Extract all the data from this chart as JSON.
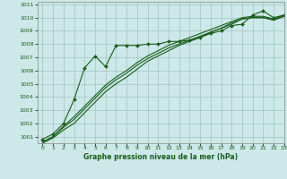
{
  "background_color": "#cce8e8",
  "grid_color": "#99bbbb",
  "line_color": "#1a5c1a",
  "marker_color": "#1a5c1a",
  "xlabel": "Graphe pression niveau de la mer (hPa)",
  "ylim": [
    1000.5,
    1011.2
  ],
  "xlim": [
    -0.5,
    23
  ],
  "yticks": [
    1001,
    1002,
    1003,
    1004,
    1005,
    1006,
    1007,
    1008,
    1009,
    1010,
    1011
  ],
  "xticks": [
    0,
    1,
    2,
    3,
    4,
    5,
    6,
    7,
    8,
    9,
    10,
    11,
    12,
    13,
    14,
    15,
    16,
    17,
    18,
    19,
    20,
    21,
    22,
    23
  ],
  "series_marker": [
    1000.8,
    1001.2,
    1002.0,
    1003.8,
    1006.2,
    1007.1,
    1006.3,
    1007.9,
    1007.9,
    1007.9,
    1008.0,
    1008.0,
    1008.2,
    1008.2,
    1008.3,
    1008.5,
    1008.8,
    1009.0,
    1009.4,
    1009.5,
    1010.2,
    1010.5,
    1010.0,
    1010.2
  ],
  "series_smooth1": [
    1000.6,
    1001.0,
    1001.8,
    1002.5,
    1003.3,
    1004.1,
    1004.9,
    1005.5,
    1006.0,
    1006.6,
    1007.1,
    1007.5,
    1007.9,
    1008.2,
    1008.5,
    1008.8,
    1009.1,
    1009.4,
    1009.7,
    1010.0,
    1010.1,
    1010.1,
    1009.9,
    1010.2
  ],
  "series_smooth2": [
    1000.6,
    1001.0,
    1001.7,
    1002.3,
    1003.1,
    1003.9,
    1004.7,
    1005.3,
    1005.8,
    1006.4,
    1006.9,
    1007.3,
    1007.7,
    1008.0,
    1008.3,
    1008.6,
    1008.9,
    1009.2,
    1009.6,
    1009.9,
    1010.0,
    1010.0,
    1009.9,
    1010.1
  ],
  "series_smooth3": [
    1000.5,
    1000.9,
    1001.5,
    1002.0,
    1002.8,
    1003.6,
    1004.4,
    1005.0,
    1005.5,
    1006.1,
    1006.7,
    1007.1,
    1007.5,
    1007.9,
    1008.2,
    1008.5,
    1008.9,
    1009.2,
    1009.5,
    1009.9,
    1010.0,
    1010.0,
    1009.8,
    1010.1
  ]
}
